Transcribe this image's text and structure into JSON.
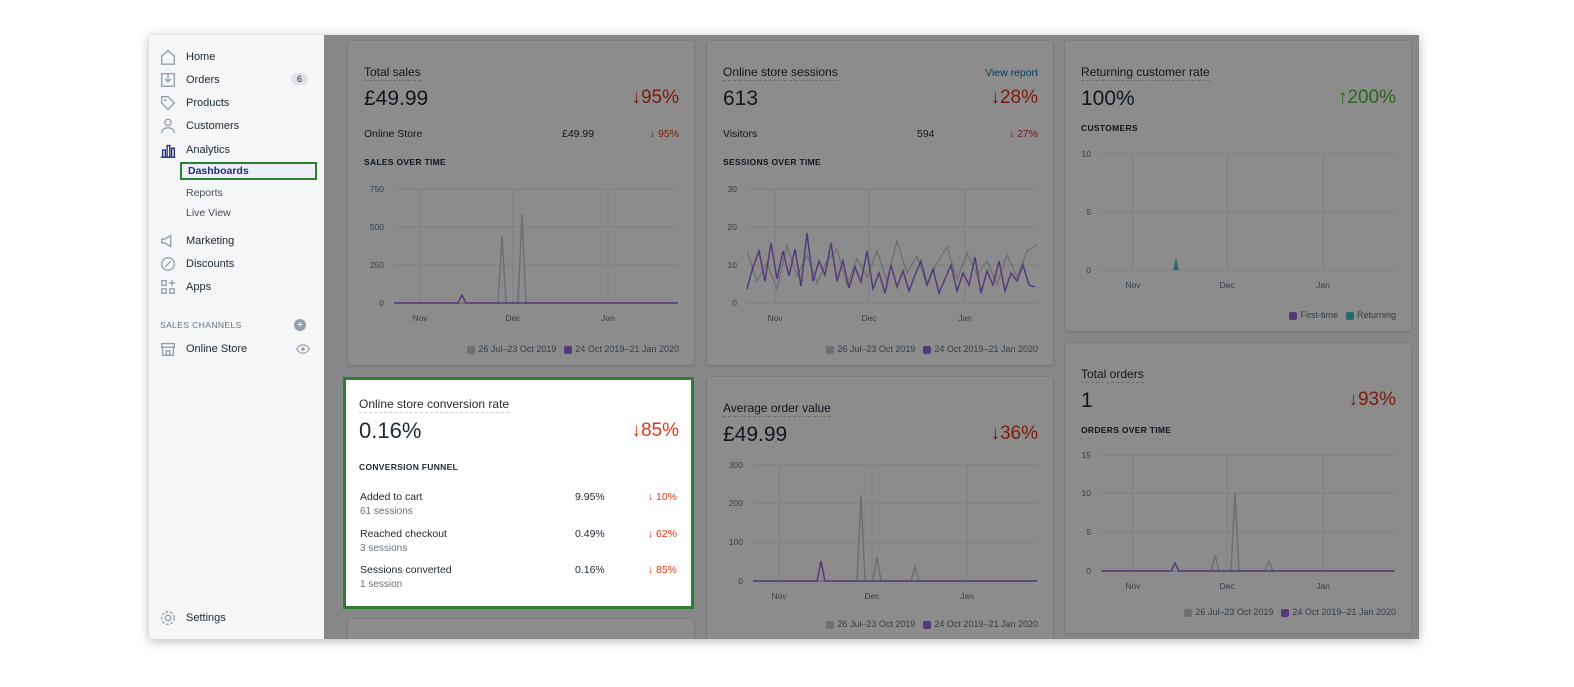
{
  "sidebar": {
    "items": [
      {
        "label": "Home",
        "icon": "home-icon"
      },
      {
        "label": "Orders",
        "icon": "orders-icon",
        "badge": "6"
      },
      {
        "label": "Products",
        "icon": "tag-icon"
      },
      {
        "label": "Customers",
        "icon": "person-icon"
      },
      {
        "label": "Analytics",
        "icon": "bar-chart-icon"
      }
    ],
    "analytics_sub": [
      "Dashboards",
      "Reports",
      "Live View"
    ],
    "items2": [
      {
        "label": "Marketing",
        "icon": "megaphone-icon"
      },
      {
        "label": "Discounts",
        "icon": "discount-icon"
      },
      {
        "label": "Apps",
        "icon": "apps-icon"
      }
    ],
    "sales_channels_title": "SALES CHANNELS",
    "online_store": "Online Store",
    "settings": "Settings"
  },
  "cards": {
    "total_sales": {
      "title": "Total sales",
      "value": "£49.99",
      "delta": "↓95%",
      "row_label": "Online Store",
      "row_value": "£49.99",
      "row_delta": "↓ 95%",
      "section": "SALES OVER TIME",
      "y_ticks": [
        "750",
        "500",
        "250",
        "0"
      ],
      "x_ticks": [
        "Nov",
        "Dec",
        "Jan"
      ],
      "legend": [
        "26 Jul–23 Oct 2019",
        "24 Oct 2019–21 Jan 2020"
      ]
    },
    "sessions": {
      "title": "Online store sessions",
      "link": "View report",
      "value": "613",
      "delta": "↓28%",
      "row_label": "Visitors",
      "row_value": "594",
      "row_delta": "↓ 27%",
      "section": "SESSIONS OVER TIME",
      "y_ticks": [
        "30",
        "20",
        "10",
        "0"
      ],
      "x_ticks": [
        "Nov",
        "Dec",
        "Jan"
      ],
      "legend": [
        "26 Jul–23 Oct 2019",
        "24 Oct 2019–21 Jan 2020"
      ]
    },
    "returning": {
      "title": "Returning customer rate",
      "value": "100%",
      "delta": "↑200%",
      "section": "CUSTOMERS",
      "y_ticks": [
        "10",
        "5",
        "0"
      ],
      "x_ticks": [
        "Nov",
        "Dec",
        "Jan"
      ],
      "legend": [
        "First-time",
        "Returning"
      ]
    },
    "conversion": {
      "title": "Online store conversion rate",
      "value": "0.16%",
      "delta": "↓85%",
      "section": "CONVERSION FUNNEL",
      "rows": [
        {
          "label": "Added to cart",
          "sub": "61 sessions",
          "pct": "9.95%",
          "delta": "↓ 10%"
        },
        {
          "label": "Reached checkout",
          "sub": "3 sessions",
          "pct": "0.49%",
          "delta": "↓ 62%"
        },
        {
          "label": "Sessions converted",
          "sub": "1 session",
          "pct": "0.16%",
          "delta": "↓ 85%"
        }
      ]
    },
    "aov": {
      "title": "Average order value",
      "value": "£49.99",
      "delta": "↓36%",
      "y_ticks": [
        "300",
        "200",
        "100",
        "0"
      ],
      "x_ticks": [
        "Nov",
        "Dec",
        "Jan"
      ],
      "legend": [
        "26 Jul–23 Oct 2019",
        "24 Oct 2019–21 Jan 2020"
      ]
    },
    "total_orders": {
      "title": "Total orders",
      "value": "1",
      "delta": "↓93%",
      "section": "ORDERS OVER TIME",
      "y_ticks": [
        "15",
        "10",
        "5",
        "0"
      ],
      "x_ticks": [
        "Nov",
        "Dec",
        "Jan"
      ],
      "legend": [
        "26 Jul–23 Oct 2019",
        "24 Oct 2019–21 Jan 2020"
      ]
    }
  },
  "colors": {
    "accent": "#202e78",
    "purple": "#9c6ade",
    "grey_series": "#c4cdd5",
    "teal": "#47c1bf",
    "red": "#de3618",
    "green": "#50b83c",
    "highlight": "#2e7d32"
  }
}
